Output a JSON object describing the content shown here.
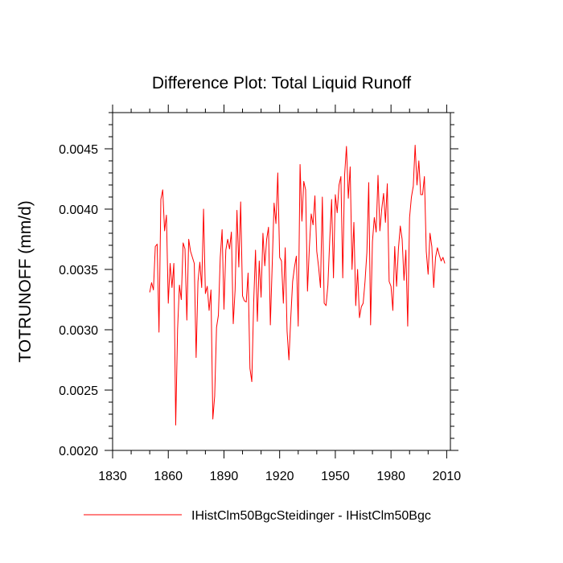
{
  "chart_data": {
    "type": "line",
    "title": "Difference Plot: Total Liquid Runoff",
    "xlabel": "",
    "ylabel": "TOTRUNOFF  (mm/d)",
    "xlim": [
      1830,
      2012
    ],
    "ylim": [
      0.002,
      0.0048
    ],
    "x_ticks": [
      1830,
      1860,
      1890,
      1920,
      1950,
      1980,
      2010
    ],
    "x_tick_labels": [
      "1830",
      "1860",
      "1890",
      "1920",
      "1950",
      "1980",
      "2010"
    ],
    "y_ticks": [
      0.002,
      0.0025,
      0.003,
      0.0035,
      0.004,
      0.0045
    ],
    "y_tick_labels": [
      "0.0020",
      "0.0025",
      "0.0030",
      "0.0035",
      "0.0040",
      "0.0045"
    ],
    "grid": false,
    "legend_position": "bottom",
    "series": [
      {
        "name": "IHistClm50BgcSteidinger - IHistClm50Bgc",
        "color": "#ff0000",
        "x_start": 1850,
        "x_step": 1,
        "values": [
          0.00331,
          0.00339,
          0.00333,
          0.00369,
          0.00371,
          0.00298,
          0.00408,
          0.00416,
          0.00382,
          0.00395,
          0.00322,
          0.00355,
          0.00335,
          0.00355,
          0.00221,
          0.003,
          0.00337,
          0.00325,
          0.00372,
          0.00367,
          0.00308,
          0.00375,
          0.00365,
          0.0036,
          0.00355,
          0.00277,
          0.0034,
          0.00356,
          0.00335,
          0.004,
          0.0033,
          0.00336,
          0.00316,
          0.00333,
          0.00226,
          0.00245,
          0.00302,
          0.00312,
          0.0036,
          0.00383,
          0.00317,
          0.00366,
          0.00375,
          0.00367,
          0.00381,
          0.00305,
          0.00333,
          0.00399,
          0.00352,
          0.00406,
          0.00328,
          0.00324,
          0.00323,
          0.00347,
          0.00268,
          0.00257,
          0.00322,
          0.00366,
          0.00307,
          0.00357,
          0.00327,
          0.0038,
          0.00353,
          0.00375,
          0.00385,
          0.00304,
          0.00354,
          0.00405,
          0.00388,
          0.0043,
          0.0036,
          0.00357,
          0.00322,
          0.00368,
          0.00299,
          0.00275,
          0.0031,
          0.0034,
          0.00352,
          0.00361,
          0.00303,
          0.00437,
          0.0039,
          0.00423,
          0.00416,
          0.00332,
          0.00368,
          0.00396,
          0.00387,
          0.00411,
          0.00365,
          0.00352,
          0.00335,
          0.0041,
          0.00322,
          0.0032,
          0.00337,
          0.00375,
          0.00408,
          0.00343,
          0.00412,
          0.00397,
          0.0042,
          0.00427,
          0.00343,
          0.00428,
          0.00452,
          0.00409,
          0.00435,
          0.0035,
          0.00389,
          0.0032,
          0.0035,
          0.0031,
          0.00319,
          0.00322,
          0.0034,
          0.00364,
          0.00422,
          0.00304,
          0.00373,
          0.00393,
          0.00381,
          0.00428,
          0.00382,
          0.004,
          0.00413,
          0.00389,
          0.00421,
          0.0034,
          0.00336,
          0.00316,
          0.00369,
          0.00336,
          0.00367,
          0.00386,
          0.00375,
          0.00341,
          0.00366,
          0.00303,
          0.00393,
          0.0041,
          0.00419,
          0.00453,
          0.0042,
          0.0044,
          0.00412,
          0.00412,
          0.00427,
          0.00365,
          0.00346,
          0.0038,
          0.00369,
          0.00335,
          0.0036,
          0.00368,
          0.00362,
          0.00357,
          0.0036,
          0.00355
        ]
      }
    ]
  }
}
